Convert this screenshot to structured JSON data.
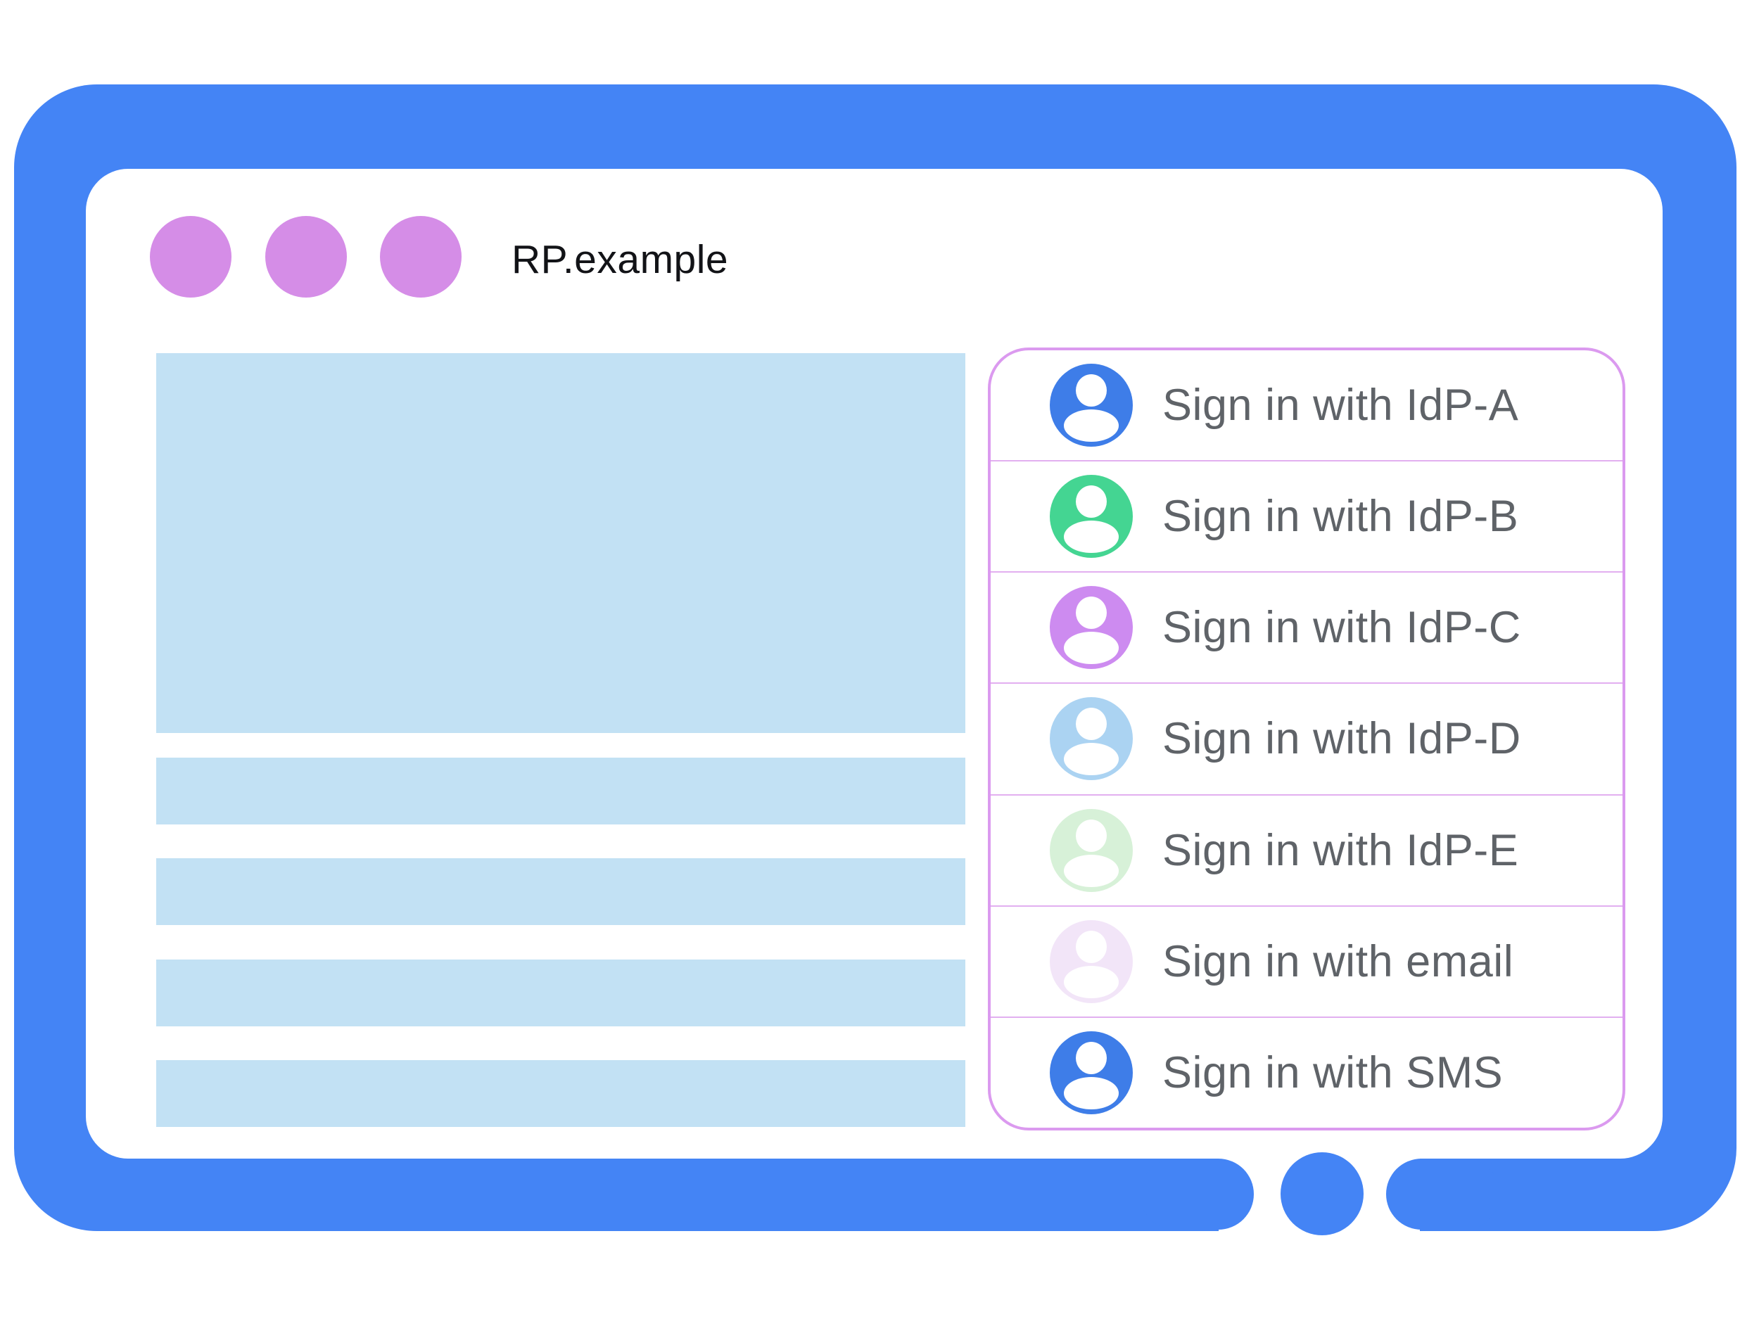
{
  "colors": {
    "frame": "#4484F5",
    "dot": "#D58DE7",
    "placeholder": "#C2E1F4",
    "panel-border": "#DB9AEF",
    "divider": "#E2AFF0",
    "label": "#5F6368",
    "title": "#121317"
  },
  "window": {
    "title": "RP.example",
    "control_dot_count": 3
  },
  "signin_panel": {
    "options": [
      {
        "label": "Sign in with IdP-A",
        "avatar_color": "#3E7DE8"
      },
      {
        "label": "Sign in with IdP-B",
        "avatar_color": "#44D592"
      },
      {
        "label": "Sign in with IdP-C",
        "avatar_color": "#CD8BF0"
      },
      {
        "label": "Sign in with IdP-D",
        "avatar_color": "#ABD3F2"
      },
      {
        "label": "Sign in with IdP-E",
        "avatar_color": "#D7F1D8"
      },
      {
        "label": "Sign in with email",
        "avatar_color": "#F2E5F8"
      },
      {
        "label": "Sign in with SMS",
        "avatar_color": "#3E7DE8"
      }
    ]
  }
}
